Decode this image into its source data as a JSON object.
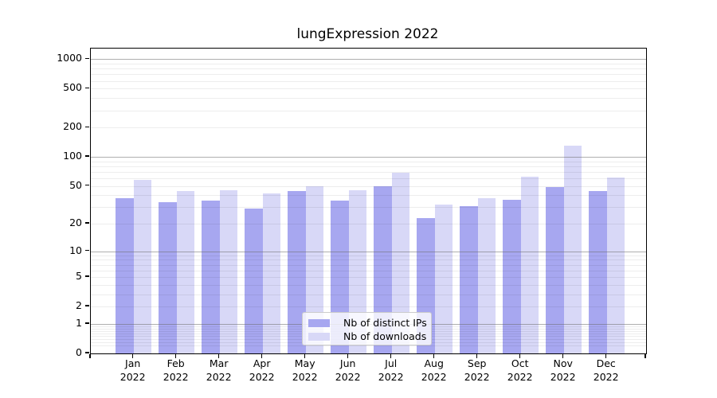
{
  "title": "lungExpression 2022",
  "chart_data": {
    "type": "bar",
    "title": "lungExpression 2022",
    "xlabel": "",
    "ylabel": "",
    "yscale": "log1p",
    "grid": true,
    "legend_position": "lower center inside",
    "ylim": [
      0,
      1280
    ],
    "yticks": [
      1000,
      500,
      200,
      100,
      50,
      20,
      10,
      5,
      2,
      1,
      0
    ],
    "categories": [
      "Jan 2022",
      "Feb 2022",
      "Mar 2022",
      "Apr 2022",
      "May 2022",
      "Jun 2022",
      "Jul 2022",
      "Aug 2022",
      "Sep 2022",
      "Oct 2022",
      "Nov 2022",
      "Dec 2022"
    ],
    "series": [
      {
        "name": "Nb of distinct IPs",
        "color": "#a7a7f0",
        "values": [
          37,
          34,
          35,
          29,
          44,
          35,
          50,
          23,
          31,
          36,
          49,
          44
        ]
      },
      {
        "name": "Nb of downloads",
        "color": "#d8d8f7",
        "values": [
          58,
          44,
          45,
          42,
          50,
          45,
          68,
          32,
          37,
          62,
          130,
          61
        ]
      }
    ]
  },
  "y_axis": {
    "tick_labels": [
      "1000",
      "500",
      "200",
      "100",
      "50",
      "20",
      "10",
      "5",
      "2",
      "1",
      "0"
    ]
  },
  "legend": {
    "items": [
      {
        "label": "Nb of distinct IPs",
        "color": "#a7a7f0"
      },
      {
        "label": "Nb of downloads",
        "color": "#d8d8f7"
      }
    ]
  },
  "colors": {
    "background": "#ffffff",
    "bar_distinct_ips": "#a7a7f0",
    "bar_downloads": "#d8d8f7",
    "major_gridline": "#8e8e8e",
    "minor_gridline": "#ededed",
    "axis_border": "#000000",
    "legend_border": "#cccccc"
  }
}
